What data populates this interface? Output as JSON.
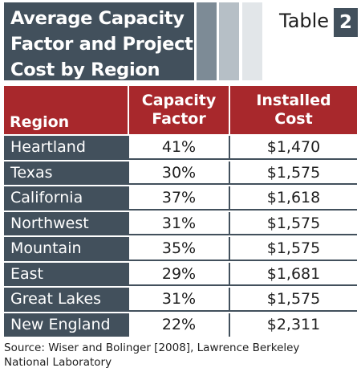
{
  "header": {
    "title_line1": "Average Capacity",
    "title_line2": "Factor and Project",
    "title_line3": "Cost by Region",
    "table_word": "Table",
    "table_number": "2"
  },
  "columns": {
    "region": "Region",
    "capacity_line1": "Capacity",
    "capacity_line2": "Factor",
    "cost_line1": "Installed",
    "cost_line2": "Cost"
  },
  "rows": [
    {
      "region": "Heartland",
      "capacity": "41%",
      "cost": "$1,470"
    },
    {
      "region": "Texas",
      "capacity": "30%",
      "cost": "$1,575"
    },
    {
      "region": "California",
      "capacity": "37%",
      "cost": "$1,618"
    },
    {
      "region": "Northwest",
      "capacity": "31%",
      "cost": "$1,575"
    },
    {
      "region": "Mountain",
      "capacity": "35%",
      "cost": "$1,575"
    },
    {
      "region": "East",
      "capacity": "29%",
      "cost": "$1,681"
    },
    {
      "region": "Great Lakes",
      "capacity": "31%",
      "cost": "$1,575"
    },
    {
      "region": "New England",
      "capacity": "22%",
      "cost": "$2,311"
    }
  ],
  "source_line1": "Source: Wiser and Bolinger [2008], Lawrence Berkeley",
  "source_line2": "National Laboratory",
  "colors": {
    "slate": "#42505c",
    "header_red": "#a8282c",
    "stripe_dark": "#7d8b96",
    "stripe_mid": "#b6bfc6",
    "stripe_light": "#e2e6e9"
  }
}
